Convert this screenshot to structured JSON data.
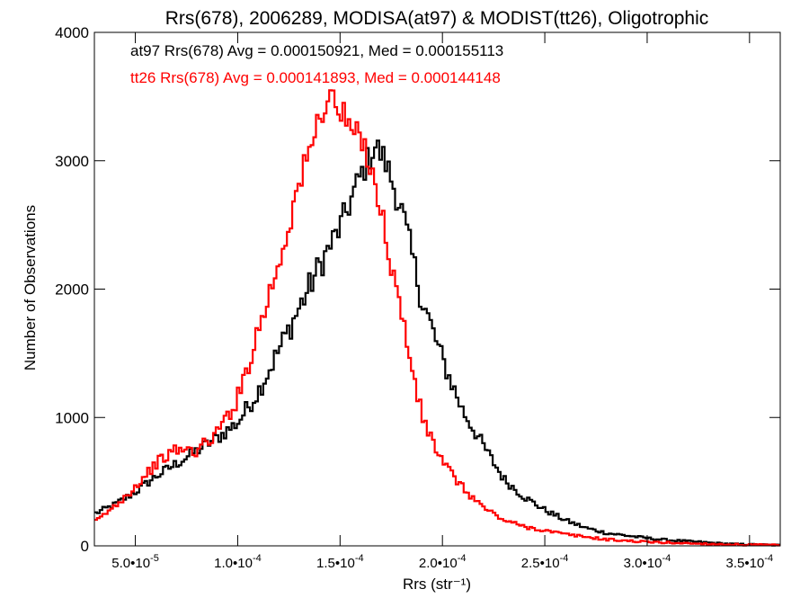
{
  "chart_data": {
    "type": "line",
    "step": true,
    "title": "Rrs(678), 2006289, MODISA(at97) & MODIST(tt26), Oligotrophic",
    "xlabel": "Rrs (str⁻¹)",
    "ylabel": "Number of Observations",
    "xlim": [
      3e-05,
      0.000365
    ],
    "ylim": [
      0,
      4000
    ],
    "x_ticks": [
      {
        "value": 5e-05,
        "mant": "5.0",
        "exp": "-5"
      },
      {
        "value": 0.0001,
        "mant": "1.0",
        "exp": "-4"
      },
      {
        "value": 0.00015,
        "mant": "1.5",
        "exp": "-4"
      },
      {
        "value": 0.0002,
        "mant": "2.0",
        "exp": "-4"
      },
      {
        "value": 0.00025,
        "mant": "2.5",
        "exp": "-4"
      },
      {
        "value": 0.0003,
        "mant": "3.0",
        "exp": "-4"
      },
      {
        "value": 0.00035,
        "mant": "3.5",
        "exp": "-4"
      }
    ],
    "y_ticks": [
      {
        "value": 0,
        "label": "0"
      },
      {
        "value": 1000,
        "label": "1000"
      },
      {
        "value": 2000,
        "label": "2000"
      },
      {
        "value": 3000,
        "label": "3000"
      },
      {
        "value": 4000,
        "label": "4000"
      }
    ],
    "annotations": [
      {
        "text": "at97 Rrs(678) Avg = 0.000150921, Med = 0.000155113",
        "color": "#000000"
      },
      {
        "text": "tt26 Rrs(678) Avg = 0.000141893, Med = 0.000144148",
        "color": "#ff0000"
      }
    ],
    "series": [
      {
        "color": "#000000",
        "x": [
          3e-05,
          4e-05,
          5e-05,
          6e-05,
          7e-05,
          8e-05,
          9e-05,
          0.0001,
          0.00011,
          0.00012,
          0.00013,
          0.00014,
          0.00015,
          0.00016,
          0.000167,
          0.000172,
          0.00018,
          0.00019,
          0.0002,
          0.00021,
          0.00022,
          0.00023,
          0.00024,
          0.00025,
          0.00026,
          0.00027,
          0.00028,
          0.00029,
          0.0003,
          0.00031,
          0.00032,
          0.00033,
          0.00034,
          0.00035,
          0.000365
        ],
        "y": [
          250,
          320,
          420,
          540,
          640,
          740,
          840,
          960,
          1200,
          1520,
          1850,
          2180,
          2480,
          2880,
          3120,
          3000,
          2620,
          1920,
          1450,
          1050,
          780,
          520,
          380,
          280,
          200,
          140,
          100,
          80,
          60,
          45,
          35,
          25,
          15,
          10,
          5
        ]
      },
      {
        "color": "#ff0000",
        "x": [
          3e-05,
          4e-05,
          5e-05,
          6e-05,
          7e-05,
          8e-05,
          9e-05,
          0.0001,
          0.00011,
          0.00012,
          0.00013,
          0.000135,
          0.00014,
          0.000145,
          0.00015,
          0.000155,
          0.00016,
          0.000165,
          0.00017,
          0.00018,
          0.00019,
          0.0002,
          0.00021,
          0.00022,
          0.00023,
          0.00024,
          0.00025,
          0.00026,
          0.00027,
          0.00028,
          0.00029,
          0.0003,
          0.00032,
          0.00034,
          0.000365
        ],
        "y": [
          180,
          310,
          460,
          640,
          750,
          740,
          880,
          1150,
          1680,
          2200,
          2820,
          3050,
          3350,
          3520,
          3380,
          3250,
          3150,
          3000,
          2600,
          1800,
          1000,
          650,
          450,
          300,
          200,
          150,
          120,
          90,
          70,
          50,
          40,
          30,
          20,
          10,
          5
        ]
      }
    ]
  }
}
